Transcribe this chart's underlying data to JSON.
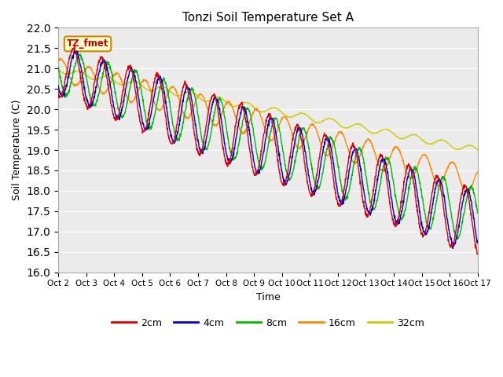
{
  "title": "Tonzi Soil Temperature Set A",
  "xlabel": "Time",
  "ylabel": "Soil Temperature (C)",
  "ylim": [
    16.0,
    22.0
  ],
  "yticks": [
    16.0,
    16.5,
    17.0,
    17.5,
    18.0,
    18.5,
    19.0,
    19.5,
    20.0,
    20.5,
    21.0,
    21.5,
    22.0
  ],
  "xtick_labels": [
    "Oct 2",
    "Oct 3",
    "Oct 4",
    "Oct 5",
    "Oct 6",
    "Oct 7",
    "Oct 8",
    "Oct 9",
    "Oct 10",
    "Oct 11",
    "Oct 12",
    "Oct 13",
    "Oct 14",
    "Oct 15",
    "Oct 16",
    "Oct 17"
  ],
  "legend_entries": [
    "2cm",
    "4cm",
    "8cm",
    "16cm",
    "32cm"
  ],
  "line_colors": [
    "#dd0000",
    "#0000cc",
    "#00bb00",
    "#ff8800",
    "#cccc00"
  ],
  "annotation_text": "TZ_fmet",
  "annotation_bg": "#ffffcc",
  "annotation_border": "#cc8800",
  "plot_bg": "#ebebeb",
  "n_days": 15,
  "ppd": 96,
  "linewidth": 1.0
}
